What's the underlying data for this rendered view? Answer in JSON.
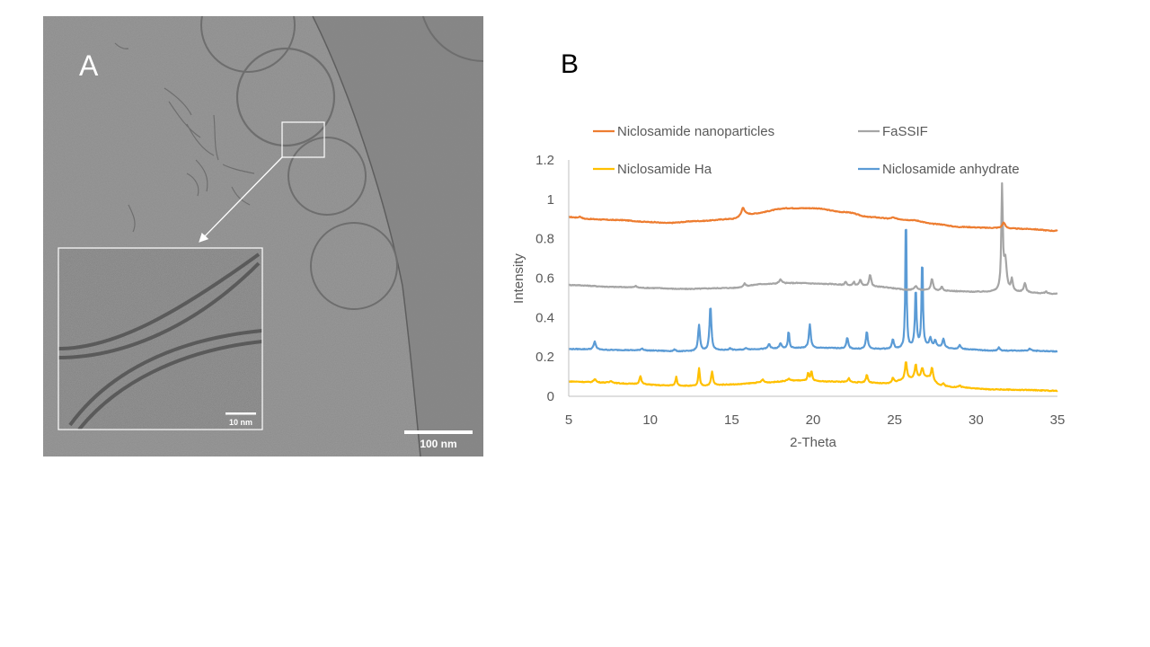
{
  "panel_a": {
    "label": "A",
    "main_scale_bar": "100 nm",
    "inset_scale_bar": "10 nm"
  },
  "panel_b": {
    "label": "B"
  },
  "chart_data": {
    "type": "line",
    "title": "",
    "xlabel": "2-Theta",
    "ylabel": "Intensity",
    "xlim": [
      5,
      35
    ],
    "ylim": [
      0,
      1.2
    ],
    "x_ticks": [
      "5",
      "10",
      "15",
      "20",
      "25",
      "30",
      "35"
    ],
    "y_ticks": [
      "0",
      "0.2",
      "0.4",
      "0.6",
      "0.8",
      "1",
      "1.2"
    ],
    "grid": false,
    "legend_position": "top",
    "series": [
      {
        "name": "Niclosamide nanoparticles",
        "color": "#ED7D31",
        "baseline": [
          [
            5,
            0.91
          ],
          [
            6,
            0.9
          ],
          [
            8,
            0.895
          ],
          [
            10,
            0.885
          ],
          [
            11,
            0.88
          ],
          [
            13,
            0.89
          ],
          [
            15,
            0.9
          ],
          [
            16,
            0.925
          ],
          [
            18.5,
            0.955
          ],
          [
            20,
            0.955
          ],
          [
            22,
            0.935
          ],
          [
            23.5,
            0.91
          ],
          [
            25,
            0.9
          ],
          [
            26,
            0.895
          ],
          [
            27.5,
            0.875
          ],
          [
            29,
            0.86
          ],
          [
            31,
            0.855
          ],
          [
            33,
            0.85
          ],
          [
            35,
            0.84
          ]
        ],
        "peaks": [
          [
            5.7,
            0.01,
            0.2
          ],
          [
            15.7,
            0.04,
            0.15
          ],
          [
            24.9,
            0.008,
            0.2
          ],
          [
            31.7,
            0.03,
            0.15
          ]
        ]
      },
      {
        "name": "FaSSIF",
        "color": "#A5A5A5",
        "baseline": [
          [
            5,
            0.565
          ],
          [
            8,
            0.555
          ],
          [
            10,
            0.55
          ],
          [
            12,
            0.545
          ],
          [
            15,
            0.55
          ],
          [
            17,
            0.57
          ],
          [
            19,
            0.575
          ],
          [
            21,
            0.57
          ],
          [
            22.5,
            0.56
          ],
          [
            24,
            0.555
          ],
          [
            26,
            0.54
          ],
          [
            28,
            0.535
          ],
          [
            30,
            0.53
          ],
          [
            32,
            0.53
          ],
          [
            35,
            0.52
          ]
        ],
        "peaks": [
          [
            9.1,
            0.008,
            0.12
          ],
          [
            15.8,
            0.015,
            0.12
          ],
          [
            18,
            0.02,
            0.15
          ],
          [
            22,
            0.02,
            0.1
          ],
          [
            22.5,
            0.02,
            0.1
          ],
          [
            22.9,
            0.03,
            0.12
          ],
          [
            23.5,
            0.06,
            0.12
          ],
          [
            26.3,
            0.02,
            0.15
          ],
          [
            27.3,
            0.06,
            0.12
          ],
          [
            27.9,
            0.02,
            0.12
          ],
          [
            31.6,
            0.52,
            0.08
          ],
          [
            31.8,
            0.15,
            0.15
          ],
          [
            32.2,
            0.06,
            0.1
          ],
          [
            33,
            0.045,
            0.12
          ],
          [
            34.3,
            0.01,
            0.12
          ]
        ]
      },
      {
        "name": "Niclosamide anhydrate",
        "color": "#5B9BD5",
        "baseline": [
          [
            5,
            0.24
          ],
          [
            8,
            0.235
          ],
          [
            10,
            0.232
          ],
          [
            12,
            0.228
          ],
          [
            13,
            0.23
          ],
          [
            15,
            0.235
          ],
          [
            17,
            0.24
          ],
          [
            19,
            0.245
          ],
          [
            21,
            0.245
          ],
          [
            23,
            0.24
          ],
          [
            25,
            0.24
          ],
          [
            27,
            0.255
          ],
          [
            29,
            0.24
          ],
          [
            31,
            0.232
          ],
          [
            33,
            0.232
          ],
          [
            35,
            0.228
          ]
        ],
        "peaks": [
          [
            6.6,
            0.04,
            0.12
          ],
          [
            9.5,
            0.01,
            0.15
          ],
          [
            11.5,
            0.008,
            0.12
          ],
          [
            13.0,
            0.13,
            0.1
          ],
          [
            13.7,
            0.23,
            0.1
          ],
          [
            14.9,
            0.008,
            0.12
          ],
          [
            15.9,
            0.008,
            0.12
          ],
          [
            17.3,
            0.025,
            0.12
          ],
          [
            18.0,
            0.025,
            0.12
          ],
          [
            18.5,
            0.09,
            0.07
          ],
          [
            19.8,
            0.12,
            0.1
          ],
          [
            22.1,
            0.055,
            0.1
          ],
          [
            23.3,
            0.09,
            0.1
          ],
          [
            24.9,
            0.05,
            0.1
          ],
          [
            25.7,
            0.74,
            0.06
          ],
          [
            26.3,
            0.3,
            0.08
          ],
          [
            26.7,
            0.46,
            0.07
          ],
          [
            27.2,
            0.04,
            0.1
          ],
          [
            27.5,
            0.03,
            0.1
          ],
          [
            28.0,
            0.045,
            0.1
          ],
          [
            29.0,
            0.02,
            0.1
          ],
          [
            31.4,
            0.015,
            0.1
          ],
          [
            33.3,
            0.012,
            0.1
          ]
        ]
      },
      {
        "name": "Niclosamide Ha",
        "color": "#FFC000",
        "baseline": [
          [
            5,
            0.075
          ],
          [
            7,
            0.07
          ],
          [
            9,
            0.063
          ],
          [
            11,
            0.055
          ],
          [
            13,
            0.052
          ],
          [
            15,
            0.06
          ],
          [
            17,
            0.07
          ],
          [
            19,
            0.08
          ],
          [
            21,
            0.075
          ],
          [
            23,
            0.07
          ],
          [
            24.5,
            0.065
          ],
          [
            26,
            0.09
          ],
          [
            27,
            0.095
          ],
          [
            28,
            0.05
          ],
          [
            29,
            0.045
          ],
          [
            31,
            0.035
          ],
          [
            33,
            0.032
          ],
          [
            35,
            0.028
          ]
        ],
        "peaks": [
          [
            6.6,
            0.018,
            0.12
          ],
          [
            7.6,
            0.01,
            0.12
          ],
          [
            9.4,
            0.04,
            0.1
          ],
          [
            11.6,
            0.045,
            0.08
          ],
          [
            13.0,
            0.09,
            0.08
          ],
          [
            13.8,
            0.07,
            0.1
          ],
          [
            16.9,
            0.015,
            0.12
          ],
          [
            18.5,
            0.01,
            0.15
          ],
          [
            19.7,
            0.04,
            0.08
          ],
          [
            19.9,
            0.05,
            0.08
          ],
          [
            22.2,
            0.02,
            0.1
          ],
          [
            23.3,
            0.04,
            0.1
          ],
          [
            24.9,
            0.025,
            0.1
          ],
          [
            25.7,
            0.09,
            0.1
          ],
          [
            26.3,
            0.07,
            0.1
          ],
          [
            26.7,
            0.05,
            0.12
          ],
          [
            27.3,
            0.06,
            0.1
          ],
          [
            28,
            0.015,
            0.12
          ],
          [
            29,
            0.01,
            0.12
          ]
        ]
      }
    ]
  }
}
